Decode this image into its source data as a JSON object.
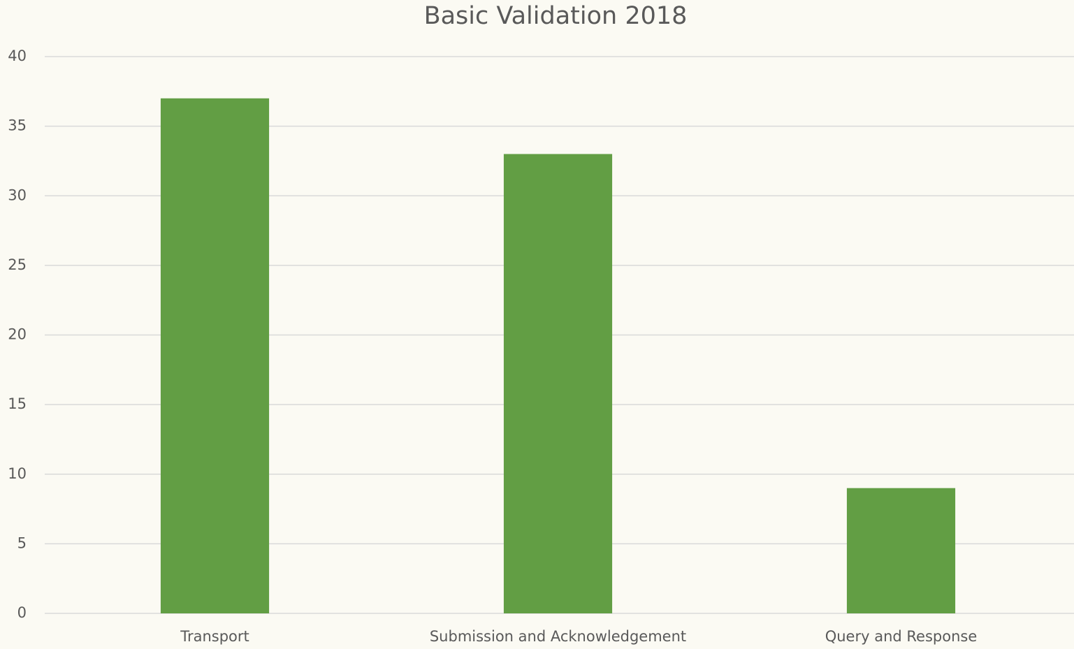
{
  "chart_data": {
    "type": "bar",
    "title": "Basic Validation 2018",
    "categories": [
      "Transport",
      "Submission and Acknowledgement",
      "Query and Response"
    ],
    "values": [
      37,
      33,
      9
    ],
    "color": "#629e44",
    "ylim": [
      0,
      40
    ],
    "yticks": [
      0,
      5,
      10,
      15,
      20,
      25,
      30,
      35,
      40
    ],
    "grid": true
  }
}
